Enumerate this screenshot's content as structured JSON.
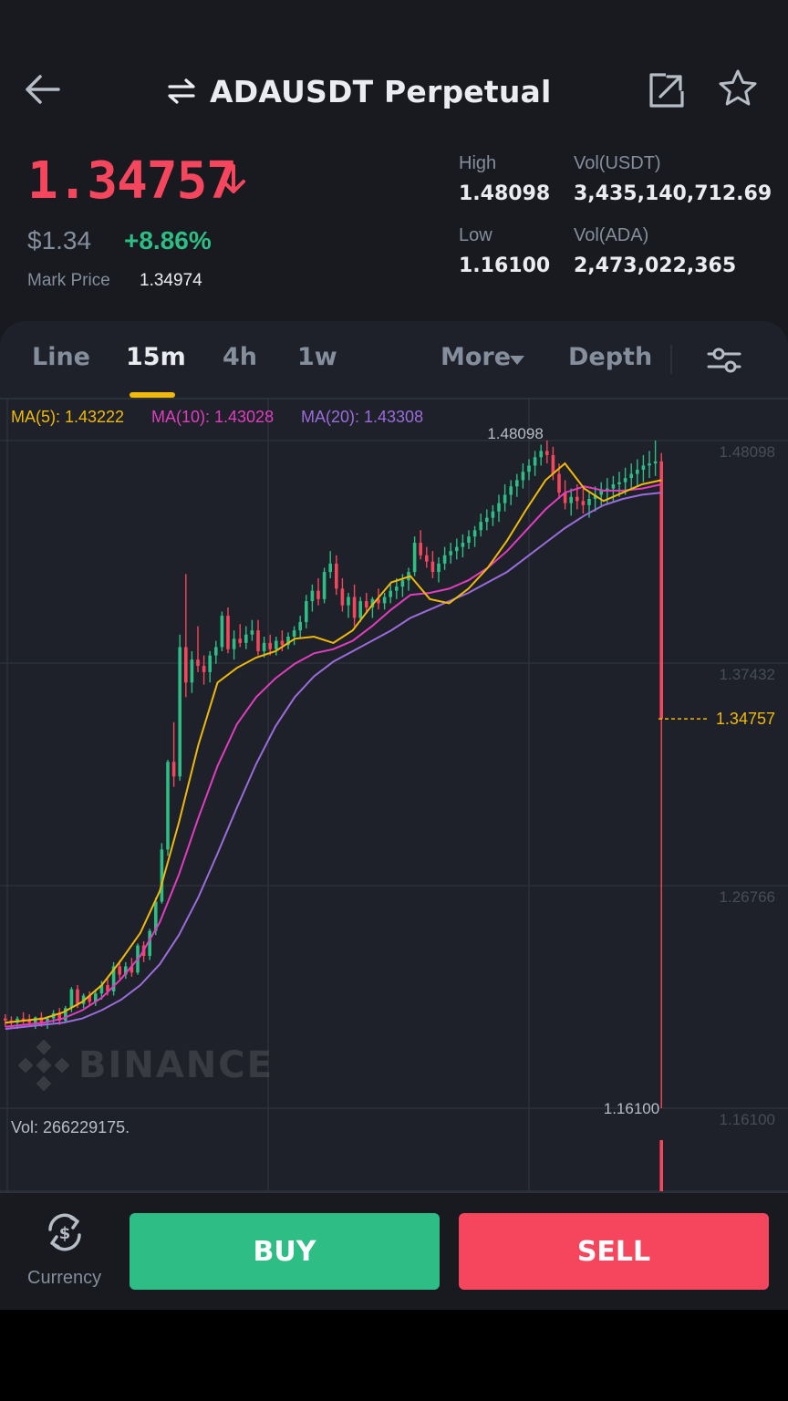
{
  "header": {
    "title": "ADAUSDT Perpetual",
    "icons": [
      "back-arrow-icon",
      "swap-arrows-icon",
      "share-icon",
      "star-icon"
    ]
  },
  "ticker": {
    "last_price": "1.34757",
    "usd_price": "$1.34",
    "change_pct": "+8.86%",
    "mark_price_label": "Mark Price",
    "mark_price": "1.34974",
    "high_label": "High",
    "high": "1.48098",
    "low_label": "Low",
    "low": "1.16100",
    "vol_usdt_label": "Vol(USDT)",
    "vol_usdt": "3,435,140,712.69",
    "vol_ada_label": "Vol(ADA)",
    "vol_ada": "2,473,022,365"
  },
  "tabs": {
    "line": "Line",
    "m15": "15m",
    "h4": "4h",
    "w1": "1w",
    "more": "More",
    "depth": "Depth",
    "active": "15m"
  },
  "chart": {
    "ma5_label": "MA(5): 1.43222",
    "ma10_label": "MA(10): 1.43028",
    "ma20_label": "MA(20): 1.43308",
    "watermark": "BINANCE",
    "vol_label": "Vol: 266229175.",
    "axis_prices": [
      "1.48098",
      "1.37432",
      "1.26766",
      "1.16100"
    ],
    "high_marker": "1.48098",
    "low_marker": "1.16100",
    "last_marker": "1.34757"
  },
  "colors": {
    "up": "#2ebd85",
    "down": "#f6465d",
    "accent": "#f0b90b",
    "ma5": "#f0b90b",
    "ma10": "#e03ebf",
    "ma20": "#9b6cdb"
  },
  "chart_data": {
    "type": "candlestick",
    "interval": "15m",
    "y_range": [
      1.161,
      1.48098
    ],
    "y_ticks": [
      1.48098,
      1.37432,
      1.26766,
      1.161
    ],
    "candles": [
      [
        1.204,
        1.206,
        1.2,
        1.203
      ],
      [
        1.203,
        1.205,
        1.199,
        1.202
      ],
      [
        1.202,
        1.205,
        1.199,
        1.204
      ],
      [
        1.204,
        1.207,
        1.201,
        1.203
      ],
      [
        1.203,
        1.206,
        1.2,
        1.202
      ],
      [
        1.202,
        1.205,
        1.199,
        1.2045
      ],
      [
        1.2045,
        1.207,
        1.2,
        1.202
      ],
      [
        1.202,
        1.205,
        1.199,
        1.204
      ],
      [
        1.204,
        1.208,
        1.202,
        1.2065
      ],
      [
        1.2065,
        1.209,
        1.201,
        1.203
      ],
      [
        1.203,
        1.21,
        1.202,
        1.209
      ],
      [
        1.209,
        1.219,
        1.207,
        1.218
      ],
      [
        1.218,
        1.22,
        1.209,
        1.211
      ],
      [
        1.211,
        1.216,
        1.209,
        1.215
      ],
      [
        1.215,
        1.217,
        1.21,
        1.212
      ],
      [
        1.212,
        1.218,
        1.21,
        1.216
      ],
      [
        1.216,
        1.222,
        1.213,
        1.22
      ],
      [
        1.22,
        1.223,
        1.215,
        1.217
      ],
      [
        1.217,
        1.231,
        1.215,
        1.229
      ],
      [
        1.229,
        1.232,
        1.223,
        1.225
      ],
      [
        1.225,
        1.231,
        1.223,
        1.229
      ],
      [
        1.229,
        1.233,
        1.224,
        1.226
      ],
      [
        1.226,
        1.24,
        1.225,
        1.239
      ],
      [
        1.239,
        1.241,
        1.231,
        1.234
      ],
      [
        1.234,
        1.247,
        1.232,
        1.246
      ],
      [
        1.246,
        1.262,
        1.244,
        1.26
      ],
      [
        1.26,
        1.288,
        1.259,
        1.285
      ],
      [
        1.285,
        1.328,
        1.282,
        1.327
      ],
      [
        1.327,
        1.346,
        1.315,
        1.32
      ],
      [
        1.32,
        1.388,
        1.318,
        1.382
      ],
      [
        1.382,
        1.417,
        1.358,
        1.365
      ],
      [
        1.365,
        1.38,
        1.36,
        1.376
      ],
      [
        1.376,
        1.392,
        1.37,
        1.373
      ],
      [
        1.373,
        1.378,
        1.364,
        1.37
      ],
      [
        1.37,
        1.38,
        1.365,
        1.378
      ],
      [
        1.378,
        1.385,
        1.374,
        1.382
      ],
      [
        1.382,
        1.399,
        1.38,
        1.397
      ],
      [
        1.397,
        1.401,
        1.379,
        1.381
      ],
      [
        1.381,
        1.39,
        1.376,
        1.386
      ],
      [
        1.386,
        1.393,
        1.382,
        1.384
      ],
      [
        1.384,
        1.392,
        1.381,
        1.388
      ],
      [
        1.388,
        1.395,
        1.385,
        1.39
      ],
      [
        1.39,
        1.395,
        1.378,
        1.38
      ],
      [
        1.38,
        1.387,
        1.377,
        1.384
      ],
      [
        1.384,
        1.388,
        1.378,
        1.381
      ],
      [
        1.381,
        1.387,
        1.378,
        1.385
      ],
      [
        1.385,
        1.39,
        1.38,
        1.383
      ],
      [
        1.383,
        1.389,
        1.381,
        1.387
      ],
      [
        1.387,
        1.392,
        1.383,
        1.39
      ],
      [
        1.39,
        1.397,
        1.386,
        1.394
      ],
      [
        1.394,
        1.407,
        1.391,
        1.404
      ],
      [
        1.404,
        1.412,
        1.399,
        1.409
      ],
      [
        1.409,
        1.415,
        1.402,
        1.405
      ],
      [
        1.405,
        1.42,
        1.403,
        1.418
      ],
      [
        1.418,
        1.428,
        1.415,
        1.422
      ],
      [
        1.422,
        1.426,
        1.407,
        1.41
      ],
      [
        1.41,
        1.415,
        1.399,
        1.402
      ],
      [
        1.402,
        1.408,
        1.396,
        1.406
      ],
      [
        1.406,
        1.412,
        1.392,
        1.396
      ],
      [
        1.396,
        1.406,
        1.394,
        1.404
      ],
      [
        1.404,
        1.408,
        1.398,
        1.401
      ],
      [
        1.401,
        1.406,
        1.396,
        1.405
      ],
      [
        1.405,
        1.41,
        1.4,
        1.403
      ],
      [
        1.403,
        1.408,
        1.4,
        1.406
      ],
      [
        1.406,
        1.412,
        1.403,
        1.409
      ],
      [
        1.409,
        1.415,
        1.405,
        1.411
      ],
      [
        1.411,
        1.417,
        1.406,
        1.414
      ],
      [
        1.414,
        1.42,
        1.409,
        1.418
      ],
      [
        1.418,
        1.435,
        1.416,
        1.432
      ],
      [
        1.432,
        1.438,
        1.424,
        1.426
      ],
      [
        1.426,
        1.43,
        1.42,
        1.423
      ],
      [
        1.423,
        1.428,
        1.415,
        1.418
      ],
      [
        1.418,
        1.425,
        1.413,
        1.422
      ],
      [
        1.422,
        1.43,
        1.419,
        1.426
      ],
      [
        1.426,
        1.432,
        1.422,
        1.428
      ],
      [
        1.428,
        1.434,
        1.424,
        1.43
      ],
      [
        1.43,
        1.436,
        1.425,
        1.432
      ],
      [
        1.432,
        1.438,
        1.429,
        1.435
      ],
      [
        1.435,
        1.44,
        1.43,
        1.438
      ],
      [
        1.438,
        1.446,
        1.435,
        1.442
      ],
      [
        1.442,
        1.448,
        1.438,
        1.444
      ],
      [
        1.444,
        1.45,
        1.44,
        1.447
      ],
      [
        1.447,
        1.455,
        1.442,
        1.451
      ],
      [
        1.451,
        1.46,
        1.447,
        1.455
      ],
      [
        1.455,
        1.462,
        1.45,
        1.459
      ],
      [
        1.459,
        1.465,
        1.454,
        1.462
      ],
      [
        1.462,
        1.47,
        1.458,
        1.466
      ],
      [
        1.466,
        1.472,
        1.462,
        1.469
      ],
      [
        1.469,
        1.476,
        1.464,
        1.473
      ],
      [
        1.473,
        1.479,
        1.469,
        1.476
      ],
      [
        1.476,
        1.481,
        1.47,
        1.474
      ],
      [
        1.474,
        1.478,
        1.462,
        1.465
      ],
      [
        1.465,
        1.47,
        1.453,
        1.456
      ],
      [
        1.456,
        1.462,
        1.448,
        1.451
      ],
      [
        1.451,
        1.458,
        1.445,
        1.454
      ],
      [
        1.454,
        1.46,
        1.448,
        1.452
      ],
      [
        1.452,
        1.458,
        1.446,
        1.45
      ],
      [
        1.45,
        1.456,
        1.444,
        1.453
      ],
      [
        1.453,
        1.459,
        1.447,
        1.455
      ],
      [
        1.455,
        1.461,
        1.449,
        1.457
      ],
      [
        1.457,
        1.463,
        1.451,
        1.458
      ],
      [
        1.458,
        1.464,
        1.452,
        1.46
      ],
      [
        1.46,
        1.466,
        1.454,
        1.461
      ],
      [
        1.461,
        1.468,
        1.455,
        1.463
      ],
      [
        1.463,
        1.47,
        1.457,
        1.465
      ],
      [
        1.465,
        1.472,
        1.459,
        1.467
      ],
      [
        1.467,
        1.474,
        1.461,
        1.469
      ],
      [
        1.469,
        1.476,
        1.463,
        1.47
      ],
      [
        1.47,
        1.481,
        1.464,
        1.471
      ],
      [
        1.471,
        1.475,
        1.161,
        1.3476
      ]
    ],
    "ma5": [
      1.202,
      1.203,
      1.204,
      1.207,
      1.212,
      1.22,
      1.232,
      1.245,
      1.265,
      1.298,
      1.335,
      1.365,
      1.372,
      1.377,
      1.38,
      1.386,
      1.387,
      1.384,
      1.39,
      1.402,
      1.413,
      1.416,
      1.405,
      1.403,
      1.41,
      1.42,
      1.433,
      1.448,
      1.462,
      1.47,
      1.458,
      1.452,
      1.456,
      1.46,
      1.462
    ],
    "ma10": [
      1.2,
      1.201,
      1.202,
      1.204,
      1.208,
      1.214,
      1.223,
      1.234,
      1.25,
      1.273,
      1.3,
      1.325,
      1.345,
      1.358,
      1.367,
      1.374,
      1.379,
      1.381,
      1.385,
      1.392,
      1.4,
      1.407,
      1.408,
      1.41,
      1.414,
      1.42,
      1.428,
      1.438,
      1.448,
      1.456,
      1.459,
      1.457,
      1.457,
      1.458,
      1.46
    ],
    "ma20": [
      1.199,
      1.2,
      1.201,
      1.202,
      1.204,
      1.208,
      1.213,
      1.22,
      1.23,
      1.244,
      1.262,
      1.283,
      1.305,
      1.326,
      1.344,
      1.358,
      1.368,
      1.375,
      1.38,
      1.385,
      1.39,
      1.396,
      1.4,
      1.404,
      1.408,
      1.413,
      1.418,
      1.425,
      1.432,
      1.439,
      1.445,
      1.45,
      1.453,
      1.455,
      1.456
    ]
  },
  "footer": {
    "currency_label": "Currency",
    "buy": "BUY",
    "sell": "SELL"
  }
}
